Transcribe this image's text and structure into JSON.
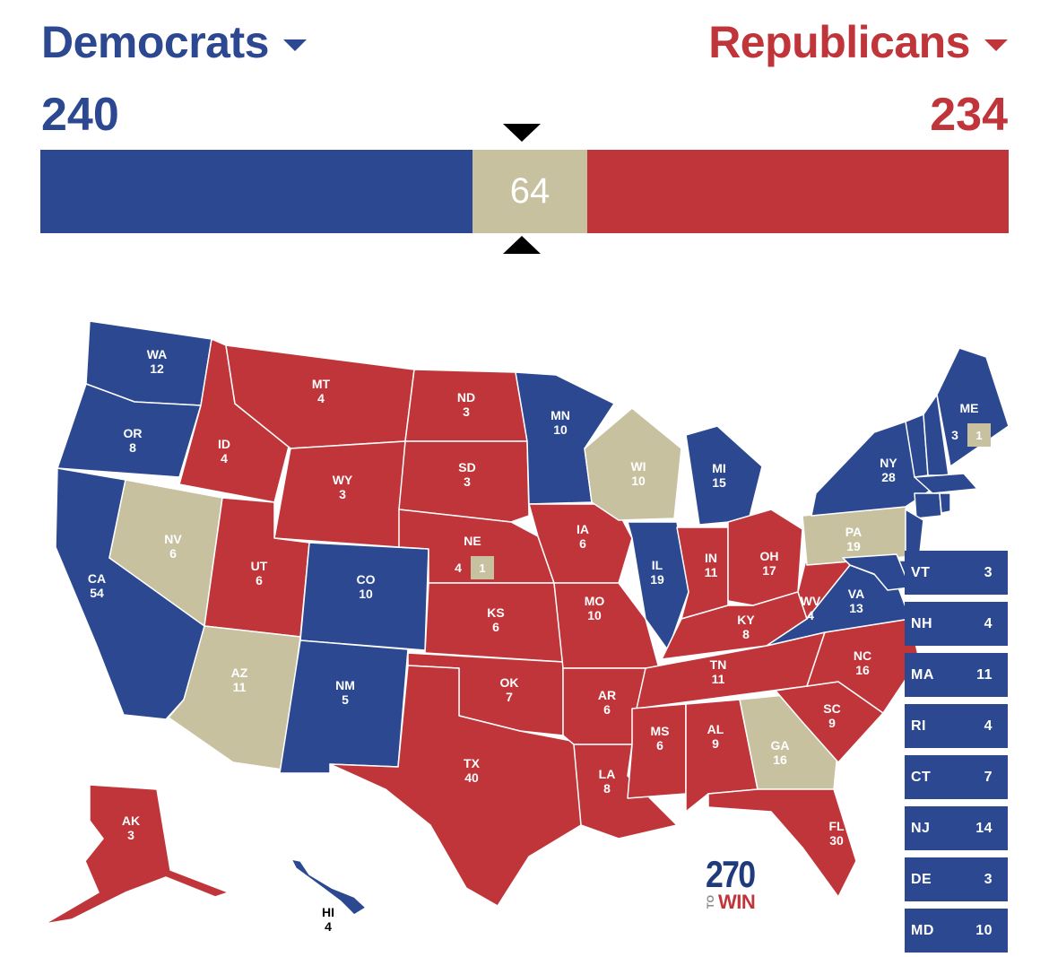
{
  "colors": {
    "dem": "#2b4891",
    "rep": "#c0353a",
    "tossup": "#c7c1a0",
    "border": "#ffffff"
  },
  "header": {
    "dem_label": "Democrats",
    "rep_label": "Republicans",
    "dem_total": "240",
    "rep_total": "234",
    "tossup_total": "64"
  },
  "bar": {
    "dem": 240,
    "tossup": 64,
    "rep": 234
  },
  "states": [
    {
      "abbr": "WA",
      "ev": "12",
      "party": "dem"
    },
    {
      "abbr": "OR",
      "ev": "8",
      "party": "dem"
    },
    {
      "abbr": "CA",
      "ev": "54",
      "party": "dem"
    },
    {
      "abbr": "NV",
      "ev": "6",
      "party": "tossup"
    },
    {
      "abbr": "ID",
      "ev": "4",
      "party": "rep"
    },
    {
      "abbr": "MT",
      "ev": "4",
      "party": "rep"
    },
    {
      "abbr": "WY",
      "ev": "3",
      "party": "rep"
    },
    {
      "abbr": "UT",
      "ev": "6",
      "party": "rep"
    },
    {
      "abbr": "AZ",
      "ev": "11",
      "party": "tossup"
    },
    {
      "abbr": "CO",
      "ev": "10",
      "party": "dem"
    },
    {
      "abbr": "NM",
      "ev": "5",
      "party": "dem"
    },
    {
      "abbr": "ND",
      "ev": "3",
      "party": "rep"
    },
    {
      "abbr": "SD",
      "ev": "3",
      "party": "rep"
    },
    {
      "abbr": "NE",
      "ev": "4",
      "party": "rep",
      "extra": "1"
    },
    {
      "abbr": "KS",
      "ev": "6",
      "party": "rep"
    },
    {
      "abbr": "OK",
      "ev": "7",
      "party": "rep"
    },
    {
      "abbr": "TX",
      "ev": "40",
      "party": "rep"
    },
    {
      "abbr": "MN",
      "ev": "10",
      "party": "dem"
    },
    {
      "abbr": "IA",
      "ev": "6",
      "party": "rep"
    },
    {
      "abbr": "MO",
      "ev": "10",
      "party": "rep"
    },
    {
      "abbr": "AR",
      "ev": "6",
      "party": "rep"
    },
    {
      "abbr": "LA",
      "ev": "8",
      "party": "rep"
    },
    {
      "abbr": "WI",
      "ev": "10",
      "party": "tossup"
    },
    {
      "abbr": "IL",
      "ev": "19",
      "party": "dem"
    },
    {
      "abbr": "MI",
      "ev": "15",
      "party": "dem"
    },
    {
      "abbr": "IN",
      "ev": "11",
      "party": "rep"
    },
    {
      "abbr": "OH",
      "ev": "17",
      "party": "rep"
    },
    {
      "abbr": "KY",
      "ev": "8",
      "party": "rep"
    },
    {
      "abbr": "TN",
      "ev": "11",
      "party": "rep"
    },
    {
      "abbr": "MS",
      "ev": "6",
      "party": "rep"
    },
    {
      "abbr": "AL",
      "ev": "9",
      "party": "rep"
    },
    {
      "abbr": "GA",
      "ev": "16",
      "party": "tossup"
    },
    {
      "abbr": "FL",
      "ev": "30",
      "party": "rep"
    },
    {
      "abbr": "SC",
      "ev": "9",
      "party": "rep"
    },
    {
      "abbr": "NC",
      "ev": "16",
      "party": "rep"
    },
    {
      "abbr": "VA",
      "ev": "13",
      "party": "dem"
    },
    {
      "abbr": "WV",
      "ev": "4",
      "party": "rep"
    },
    {
      "abbr": "PA",
      "ev": "19",
      "party": "tossup"
    },
    {
      "abbr": "NY",
      "ev": "28",
      "party": "dem"
    },
    {
      "abbr": "ME",
      "ev": "3",
      "party": "dem",
      "extra": "1"
    },
    {
      "abbr": "AK",
      "ev": "3",
      "party": "rep"
    },
    {
      "abbr": "HI",
      "ev": "4",
      "party": "dem"
    }
  ],
  "small_states": [
    {
      "abbr": "VT",
      "ev": "3"
    },
    {
      "abbr": "NH",
      "ev": "4"
    },
    {
      "abbr": "MA",
      "ev": "11"
    },
    {
      "abbr": "RI",
      "ev": "4"
    },
    {
      "abbr": "CT",
      "ev": "7"
    },
    {
      "abbr": "NJ",
      "ev": "14"
    },
    {
      "abbr": "DE",
      "ev": "3"
    },
    {
      "abbr": "MD",
      "ev": "10"
    }
  ],
  "logo": {
    "number": "270",
    "to": "TO",
    "win": "WIN"
  }
}
